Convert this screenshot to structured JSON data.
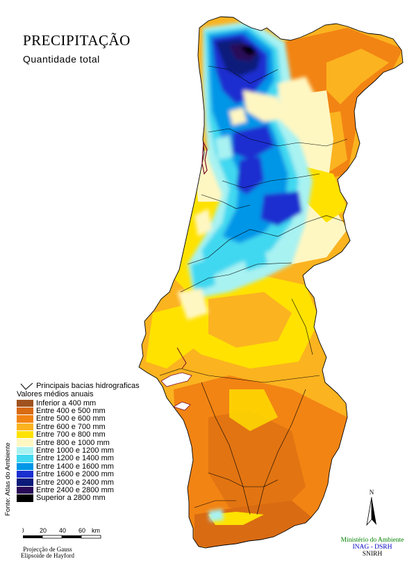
{
  "title": "PRECIPITAÇÃO",
  "subtitle": "Quantidade total",
  "legend": {
    "basins_label": "Principais bacias hidrograficas",
    "heading": "Valores médios anuais",
    "classes": [
      {
        "label": "Inferior a 400 mm",
        "color": "#a0521e"
      },
      {
        "label": "Entre 400 e 500 mm",
        "color": "#d96b13"
      },
      {
        "label": "Entre 500 e 600 mm",
        "color": "#f28413"
      },
      {
        "label": "Entre 600 e 700 mm",
        "color": "#fbb320"
      },
      {
        "label": "Entre 700 e 800 mm",
        "color": "#ffe200"
      },
      {
        "label": "Entre 800 e 1000 mm",
        "color": "#fff7c2"
      },
      {
        "label": "Entre 1000 e 1200 mm",
        "color": "#a8f2f2"
      },
      {
        "label": "Entre 1200 e 1400 mm",
        "color": "#3fd8f0"
      },
      {
        "label": "Entre 1400 e 1600 mm",
        "color": "#0096e8"
      },
      {
        "label": "Entre 1600 e 2000 mm",
        "color": "#1a2fd0"
      },
      {
        "label": "Entre 2000 e 2400 mm",
        "color": "#0c1a7a"
      },
      {
        "label": "Entre 2400 e 2800 mm",
        "color": "#2a0a58"
      },
      {
        "label": "Superior a 2800 mm",
        "color": "#000000"
      }
    ]
  },
  "source": "Fonte: Atlas do Ambiente",
  "scale": {
    "ticks": [
      "0",
      "20",
      "40",
      "60"
    ],
    "unit": "km"
  },
  "projection": {
    "line1": "Projecção de Gauss",
    "line2": "Elipsoide de Hayford"
  },
  "north_label": "N",
  "ministry": {
    "line1": "Ministério do Ambiente",
    "line2": "INAG - DSRH",
    "line3": "SNIRH"
  },
  "colors": {
    "outline": "#000000",
    "background": "#ffffff"
  }
}
